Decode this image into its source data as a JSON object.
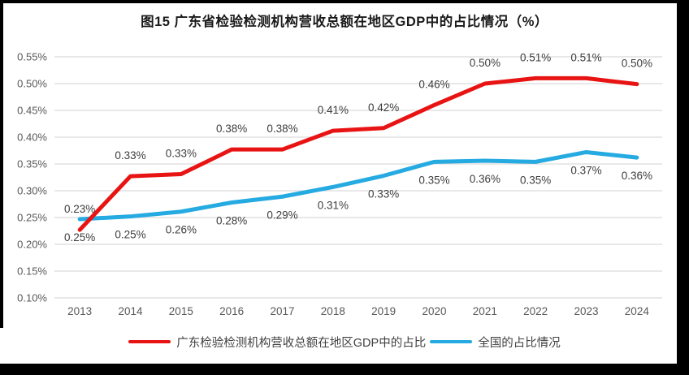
{
  "title": "图15  广东省检验检测机构营收总额在地区GDP中的占比情况（%）",
  "colors": {
    "guangdong_line": "#e81414",
    "national_line": "#25aae1",
    "gridline": "#d9d9d9",
    "axis_text": "#595959",
    "data_label_text": "#3d3d3d",
    "title_text": "#1a1a1a",
    "frame_border": "#000000",
    "background": "#ffffff"
  },
  "chart_data": {
    "type": "line",
    "title": "图15  广东省检验检测机构营收总额在地区GDP中的占比情况（%）",
    "categories": [
      "2013",
      "2014",
      "2015",
      "2016",
      "2017",
      "2018",
      "2019",
      "2020",
      "2021",
      "2022",
      "2023",
      "2024"
    ],
    "series": [
      {
        "name": "广东检验检测机构营收总额在地区GDP中的占比",
        "color": "#e81414",
        "labels": [
          "0.23%",
          "0.33%",
          "0.33%",
          "0.38%",
          "0.38%",
          "0.41%",
          "0.42%",
          "0.46%",
          "0.50%",
          "0.51%",
          "0.51%",
          "0.50%"
        ],
        "values": [
          0.23,
          0.33,
          0.33,
          0.38,
          0.38,
          0.41,
          0.42,
          0.46,
          0.5,
          0.51,
          0.51,
          0.5
        ],
        "plot_values": [
          0.227,
          0.327,
          0.331,
          0.377,
          0.377,
          0.412,
          0.417,
          0.46,
          0.5,
          0.51,
          0.51,
          0.499
        ],
        "label_position": "above"
      },
      {
        "name": "全国的占比情况",
        "color": "#25aae1",
        "labels": [
          "0.25%",
          "0.25%",
          "0.26%",
          "0.28%",
          "0.29%",
          "0.31%",
          "0.33%",
          "0.35%",
          "0.36%",
          "0.35%",
          "0.37%",
          "0.36%"
        ],
        "values": [
          0.25,
          0.25,
          0.26,
          0.28,
          0.29,
          0.31,
          0.33,
          0.35,
          0.36,
          0.35,
          0.37,
          0.36
        ],
        "plot_values": [
          0.247,
          0.252,
          0.261,
          0.278,
          0.289,
          0.307,
          0.328,
          0.354,
          0.356,
          0.354,
          0.372,
          0.362
        ],
        "label_position": "below"
      }
    ],
    "y_axis": {
      "tick_labels": [
        "0.55%",
        "0.50%",
        "0.45%",
        "0.40%",
        "0.35%",
        "0.30%",
        "0.25%",
        "0.20%",
        "0.15%",
        "0.10%"
      ],
      "min": 0.1,
      "max": 0.55,
      "step": 0.05,
      "unit": "%"
    },
    "x_axis": {
      "tick_labels": [
        "2013",
        "2014",
        "2015",
        "2016",
        "2017",
        "2018",
        "2019",
        "2020",
        "2021",
        "2022",
        "2023",
        "2024"
      ]
    },
    "grid": true,
    "legend_position": "bottom"
  }
}
